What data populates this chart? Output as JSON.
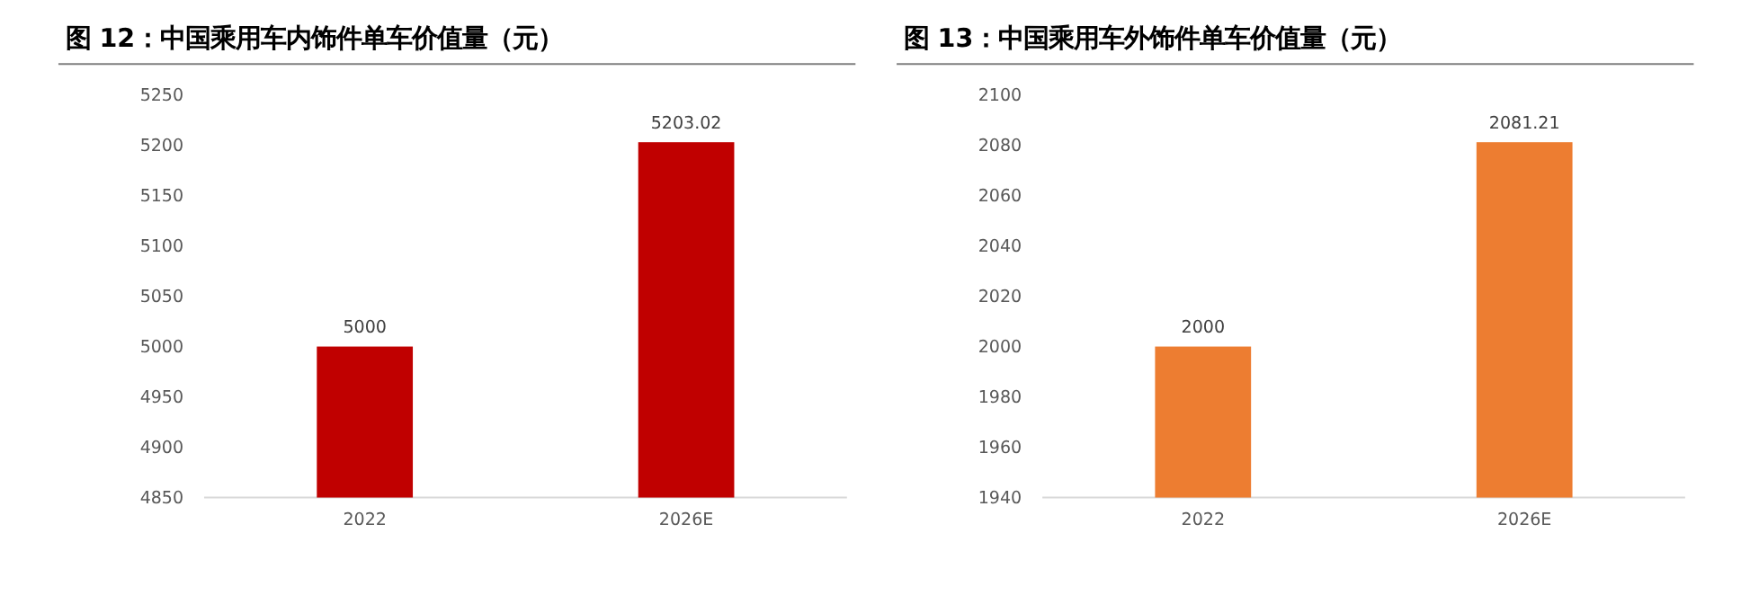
{
  "chart_data": [
    {
      "type": "bar",
      "title": "图 12：中国乘用车内饰件单车价值量（元）",
      "categories": [
        "2022",
        "2026E"
      ],
      "values": [
        5000,
        5203.02
      ],
      "color": "#c00000",
      "ylim": [
        4850,
        5250
      ],
      "yticks": [
        4850,
        4900,
        4950,
        5000,
        5050,
        5100,
        5150,
        5200,
        5250
      ],
      "data_labels": true
    },
    {
      "type": "bar",
      "title": "图 13：中国乘用车外饰件单车价值量（元）",
      "categories": [
        "2022",
        "2026E"
      ],
      "values": [
        2000,
        2081.21
      ],
      "color": "#ed7d31",
      "ylim": [
        1940,
        2100
      ],
      "yticks": [
        1940,
        1960,
        1980,
        2000,
        2020,
        2040,
        2060,
        2080,
        2100
      ],
      "data_labels": true
    }
  ]
}
